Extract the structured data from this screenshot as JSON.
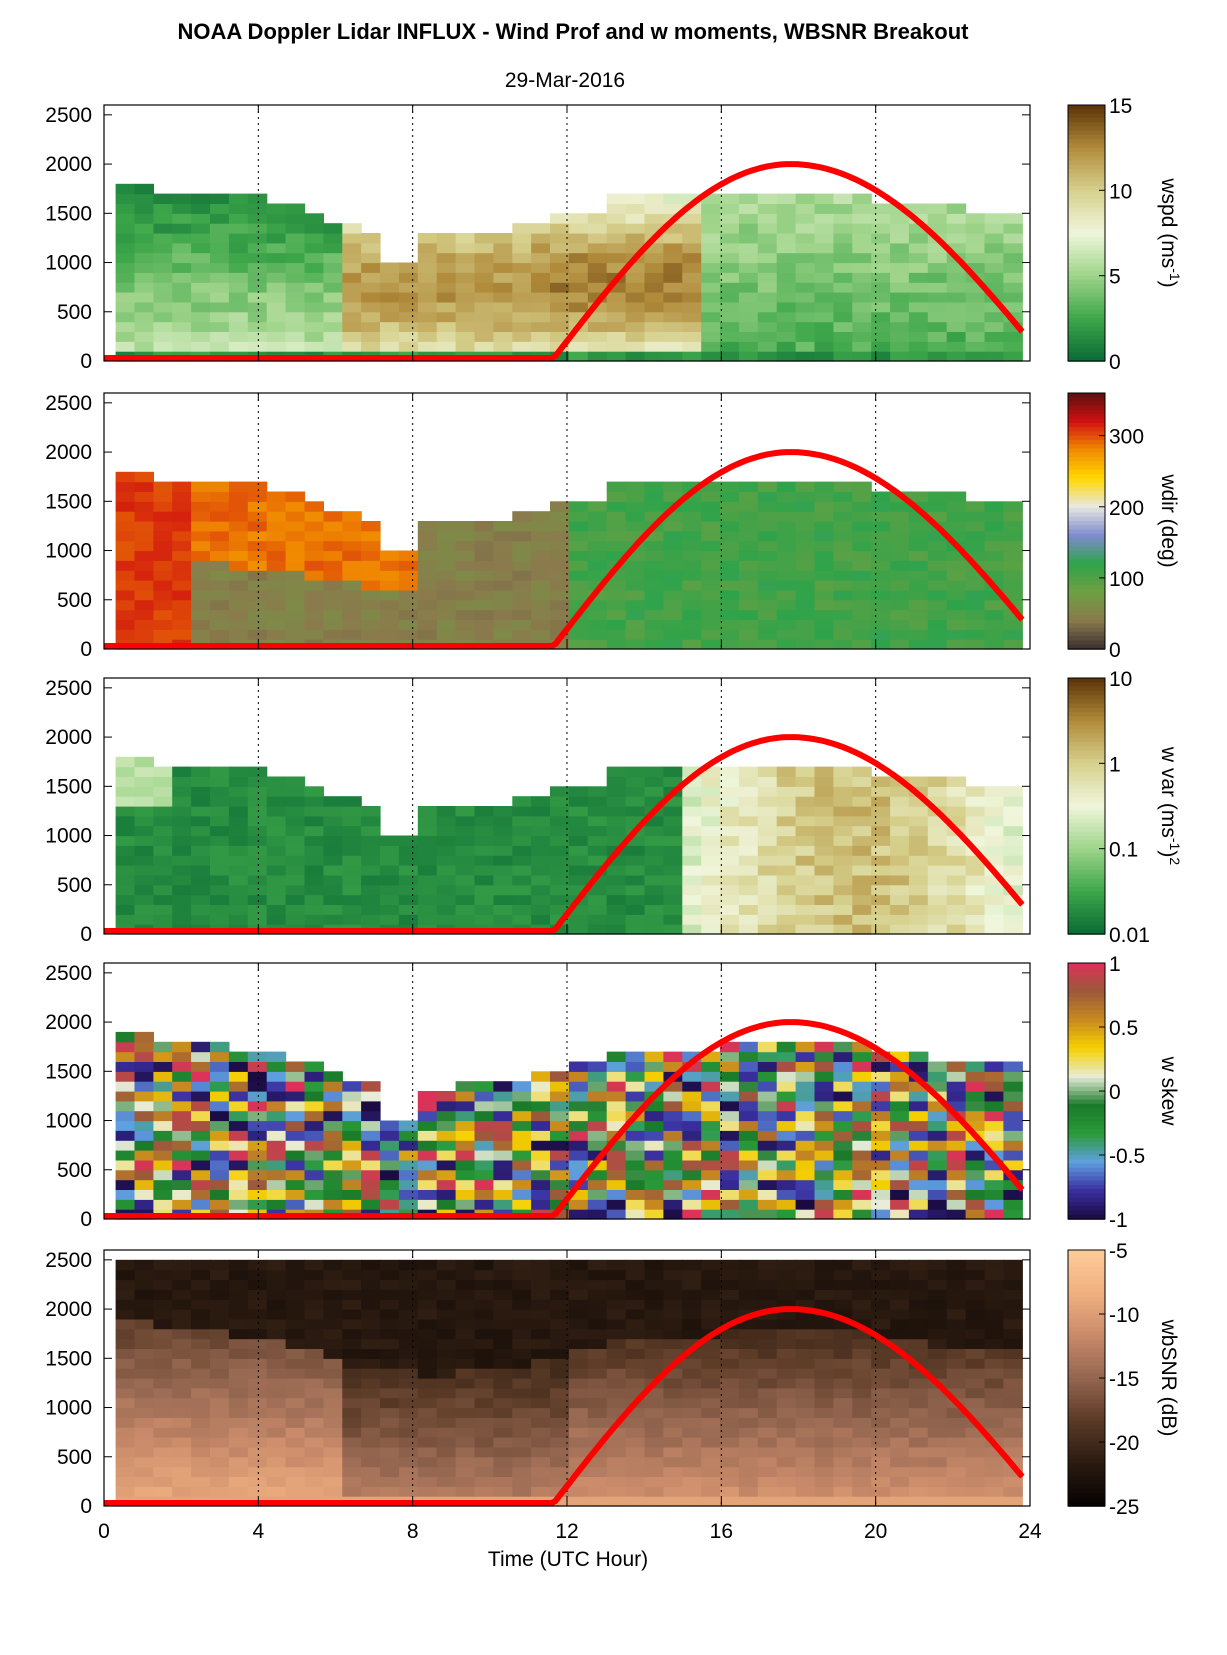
{
  "figure": {
    "title": "NOAA Doppler Lidar INFLUX - Wind Prof and w moments, WBSNR Breakout",
    "date": "29-Mar-2016",
    "xlabel": "Time (UTC Hour)",
    "xticks": [
      "0",
      "4",
      "8",
      "12",
      "16",
      "20",
      "24"
    ],
    "yticks": [
      "0",
      "500",
      "1000",
      "1500",
      "2000",
      "2500"
    ]
  },
  "chart_data": [
    {
      "type": "heatmap",
      "name": "wspd",
      "colorbar_label": "wspd (ms^-1)",
      "colorbar_label_parts": {
        "main": "wspd (ms",
        "sup": "-1",
        "tail": ")"
      },
      "colorbar_ticks": [
        "0",
        "5",
        "10",
        "15"
      ],
      "clim": [
        0,
        15
      ],
      "colormap": [
        "#0a6b35",
        "#3ea74a",
        "#9fd48a",
        "#f0f6dc",
        "#d6d08c",
        "#b08a3a",
        "#5a3208"
      ],
      "xlim": [
        0,
        24
      ],
      "ylim": [
        0,
        2600
      ],
      "sun_curve_color": "#ff0000"
    },
    {
      "type": "heatmap",
      "name": "wdir",
      "colorbar_label": "wdir (deg)",
      "colorbar_ticks": [
        "0",
        "100",
        "200",
        "300"
      ],
      "clim": [
        0,
        360
      ],
      "colormap": [
        "#3b3030",
        "#8a7a4c",
        "#6fa043",
        "#2fa34a",
        "#7f8ccf",
        "#e8e8e0",
        "#ffd800",
        "#f08a00",
        "#d01010",
        "#5a1010"
      ],
      "xlim": [
        0,
        24
      ],
      "ylim": [
        0,
        2600
      ],
      "sun_curve_color": "#ff0000"
    },
    {
      "type": "heatmap",
      "name": "w var",
      "colorbar_label": "w var (ms^-1)^2",
      "colorbar_label_parts": {
        "main": "w var (ms",
        "sup": "-1",
        "tail": ")",
        "sup2": "2"
      },
      "colorbar_ticks": [
        "0.01",
        "0.1",
        "1",
        "10"
      ],
      "clim": [
        0.01,
        10
      ],
      "colorbar_scale": "log",
      "colormap": [
        "#0a6b35",
        "#3ea74a",
        "#9fd48a",
        "#f0f6dc",
        "#d6d08c",
        "#b08a3a",
        "#5a3208"
      ],
      "xlim": [
        0,
        24
      ],
      "ylim": [
        0,
        2600
      ],
      "sun_curve_color": "#ff0000"
    },
    {
      "type": "heatmap",
      "name": "w skew",
      "colorbar_label": "w skew",
      "colorbar_ticks": [
        "-1",
        "-0.5",
        "0",
        "0.5",
        "1"
      ],
      "clim": [
        -1,
        1
      ],
      "colormap": [
        "#1a0a40",
        "#3a2fa0",
        "#5fa0e0",
        "#2a9a3a",
        "#1a7a2a",
        "#e8ecd8",
        "#f5d000",
        "#c88a20",
        "#9a5a3a",
        "#e0305a"
      ],
      "xlim": [
        0,
        24
      ],
      "ylim": [
        0,
        2600
      ],
      "sun_curve_color": "#ff0000"
    },
    {
      "type": "heatmap",
      "name": "wbSNR",
      "colorbar_label": "wbSNR (dB)",
      "colorbar_ticks": [
        "-25",
        "-20",
        "-15",
        "-10",
        "-5"
      ],
      "clim": [
        -25,
        -5
      ],
      "colormap": [
        "#050302",
        "#2a1a10",
        "#5a3a26",
        "#946650",
        "#c98a6a",
        "#f0b080",
        "#ffcc99"
      ],
      "xlim": [
        0,
        24
      ],
      "ylim": [
        0,
        2600
      ],
      "sun_curve_color": "#ff0000"
    }
  ]
}
